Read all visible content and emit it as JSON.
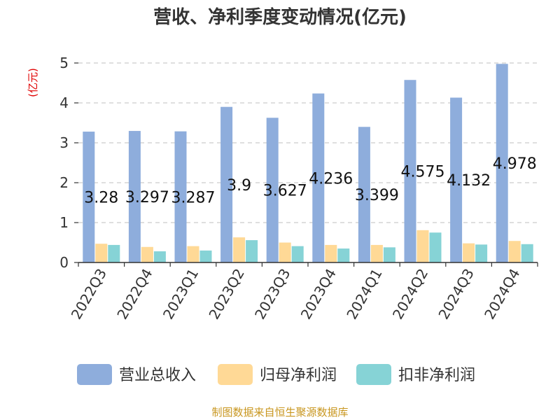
{
  "chart_data": {
    "type": "bar",
    "title": "营收、净利季度变动情况(亿元)",
    "unit_label": "(亿元)",
    "ylim": [
      0,
      5
    ],
    "yticks": [
      0,
      1,
      2,
      3,
      4,
      5
    ],
    "grid": true,
    "legend_position": "bottom",
    "categories": [
      "2022Q3",
      "2022Q4",
      "2023Q1",
      "2023Q2",
      "2023Q3",
      "2023Q4",
      "2024Q1",
      "2024Q2",
      "2024Q3",
      "2024Q4"
    ],
    "series": [
      {
        "name": "营业总收入",
        "color": "#8eaddc",
        "values": [
          3.28,
          3.297,
          3.287,
          3.9,
          3.627,
          4.236,
          3.399,
          4.575,
          4.132,
          4.978
        ],
        "labels": [
          "3.28",
          "3.297",
          "3.287",
          "3.9",
          "3.627",
          "4.236",
          "3.399",
          "4.575",
          "4.132",
          "4.978"
        ]
      },
      {
        "name": "归母净利润",
        "color": "#ffd996",
        "values": [
          0.47,
          0.39,
          0.41,
          0.63,
          0.5,
          0.44,
          0.44,
          0.81,
          0.48,
          0.54
        ]
      },
      {
        "name": "扣非净利润",
        "color": "#86d3d6",
        "values": [
          0.44,
          0.28,
          0.3,
          0.56,
          0.41,
          0.35,
          0.38,
          0.75,
          0.45,
          0.46
        ]
      }
    ],
    "source": "制图数据来自恒生聚源数据库"
  }
}
